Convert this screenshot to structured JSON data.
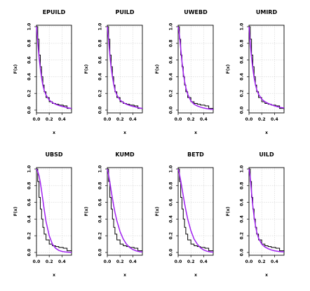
{
  "figure": {
    "panel_titles": [
      "EPUILD",
      "PUILD",
      "UWEBD",
      "UMIRD",
      "UBSD",
      "KUMD",
      "BETD",
      "UILD"
    ]
  },
  "colors": {
    "empirical": "#000000",
    "fitted": "#a020f0",
    "grid": "#d3d3d3",
    "frame": "#000000"
  },
  "chart_data": [
    {
      "type": "line",
      "title": "EPUILD",
      "xlabel": "x",
      "ylabel": "F(x)",
      "xlim": [
        0,
        0.55
      ],
      "ylim": [
        0,
        1
      ],
      "xticks": [
        "0.0",
        "0.2",
        "0.4"
      ],
      "yticks": [
        "0.0",
        "0.2",
        "0.4",
        "0.6",
        "0.8",
        "1.0"
      ],
      "grid": true,
      "legend": "none",
      "series": [
        {
          "role": "empirical",
          "style": "step",
          "x": [
            0,
            0.02,
            0.04,
            0.06,
            0.08,
            0.1,
            0.12,
            0.15,
            0.2,
            0.25,
            0.3,
            0.35,
            0.42,
            0.48,
            0.55
          ],
          "y": [
            1.0,
            0.85,
            0.66,
            0.52,
            0.4,
            0.3,
            0.22,
            0.15,
            0.1,
            0.08,
            0.07,
            0.06,
            0.05,
            0.02,
            0.0
          ]
        },
        {
          "role": "fitted",
          "style": "line",
          "x": [
            0,
            0.02,
            0.04,
            0.06,
            0.08,
            0.1,
            0.12,
            0.15,
            0.2,
            0.25,
            0.3,
            0.35,
            0.4,
            0.45,
            0.5,
            0.55
          ],
          "y": [
            1.0,
            0.82,
            0.64,
            0.5,
            0.39,
            0.3,
            0.24,
            0.18,
            0.12,
            0.09,
            0.07,
            0.055,
            0.045,
            0.035,
            0.025,
            0.02
          ]
        }
      ]
    },
    {
      "type": "line",
      "title": "PUILD",
      "xlabel": "x",
      "ylabel": "F(x)",
      "xlim": [
        0,
        0.55
      ],
      "ylim": [
        0,
        1
      ],
      "xticks": [
        "0.0",
        "0.2",
        "0.4"
      ],
      "yticks": [
        "0.0",
        "0.2",
        "0.4",
        "0.6",
        "0.8",
        "1.0"
      ],
      "grid": true,
      "legend": "none",
      "series": [
        {
          "role": "empirical",
          "style": "step",
          "x": [
            0,
            0.02,
            0.04,
            0.06,
            0.08,
            0.1,
            0.12,
            0.15,
            0.2,
            0.25,
            0.3,
            0.35,
            0.42,
            0.48,
            0.55
          ],
          "y": [
            1.0,
            0.85,
            0.66,
            0.52,
            0.4,
            0.3,
            0.22,
            0.15,
            0.1,
            0.08,
            0.07,
            0.06,
            0.05,
            0.02,
            0.0
          ]
        },
        {
          "role": "fitted",
          "style": "line",
          "x": [
            0,
            0.02,
            0.04,
            0.06,
            0.08,
            0.1,
            0.12,
            0.15,
            0.2,
            0.25,
            0.3,
            0.35,
            0.4,
            0.45,
            0.5,
            0.55
          ],
          "y": [
            1.0,
            0.84,
            0.66,
            0.51,
            0.4,
            0.31,
            0.24,
            0.18,
            0.12,
            0.09,
            0.07,
            0.055,
            0.045,
            0.035,
            0.025,
            0.02
          ]
        }
      ]
    },
    {
      "type": "line",
      "title": "UWEBD",
      "xlabel": "x",
      "ylabel": "F(x)",
      "xlim": [
        0,
        0.55
      ],
      "ylim": [
        0,
        1
      ],
      "xticks": [
        "0.0",
        "0.2",
        "0.4"
      ],
      "yticks": [
        "0.0",
        "0.2",
        "0.4",
        "0.6",
        "0.8",
        "1.0"
      ],
      "grid": true,
      "legend": "none",
      "series": [
        {
          "role": "empirical",
          "style": "step",
          "x": [
            0,
            0.02,
            0.04,
            0.06,
            0.08,
            0.1,
            0.12,
            0.15,
            0.2,
            0.25,
            0.3,
            0.35,
            0.42,
            0.48,
            0.55
          ],
          "y": [
            1.0,
            0.85,
            0.66,
            0.52,
            0.4,
            0.3,
            0.22,
            0.15,
            0.1,
            0.08,
            0.07,
            0.06,
            0.05,
            0.02,
            0.0
          ]
        },
        {
          "role": "fitted",
          "style": "line",
          "x": [
            0,
            0.02,
            0.04,
            0.06,
            0.08,
            0.1,
            0.12,
            0.15,
            0.2,
            0.25,
            0.3,
            0.35,
            0.4,
            0.45,
            0.5,
            0.55
          ],
          "y": [
            1.0,
            0.9,
            0.74,
            0.58,
            0.45,
            0.35,
            0.27,
            0.19,
            0.11,
            0.07,
            0.05,
            0.035,
            0.025,
            0.018,
            0.012,
            0.008
          ]
        }
      ]
    },
    {
      "type": "line",
      "title": "UMIRD",
      "xlabel": "x",
      "ylabel": "F(x)",
      "xlim": [
        0,
        0.55
      ],
      "ylim": [
        0,
        1
      ],
      "xticks": [
        "0.0",
        "0.2",
        "0.4"
      ],
      "yticks": [
        "0.0",
        "0.2",
        "0.4",
        "0.6",
        "0.8",
        "1.0"
      ],
      "grid": true,
      "legend": "none",
      "series": [
        {
          "role": "empirical",
          "style": "step",
          "x": [
            0,
            0.02,
            0.04,
            0.06,
            0.08,
            0.1,
            0.12,
            0.15,
            0.2,
            0.25,
            0.3,
            0.35,
            0.42,
            0.48,
            0.55
          ],
          "y": [
            1.0,
            0.85,
            0.66,
            0.52,
            0.4,
            0.3,
            0.22,
            0.15,
            0.1,
            0.08,
            0.07,
            0.06,
            0.05,
            0.02,
            0.0
          ]
        },
        {
          "role": "fitted",
          "style": "line",
          "x": [
            0,
            0.02,
            0.04,
            0.06,
            0.08,
            0.1,
            0.12,
            0.15,
            0.2,
            0.25,
            0.3,
            0.35,
            0.4,
            0.45,
            0.5,
            0.55
          ],
          "y": [
            1.0,
            0.8,
            0.63,
            0.5,
            0.39,
            0.31,
            0.25,
            0.19,
            0.13,
            0.1,
            0.08,
            0.065,
            0.05,
            0.04,
            0.03,
            0.025
          ]
        }
      ]
    },
    {
      "type": "line",
      "title": "UBSD",
      "xlabel": "x",
      "ylabel": "F(x)",
      "xlim": [
        0,
        0.55
      ],
      "ylim": [
        0,
        1
      ],
      "xticks": [
        "0.0",
        "0.2",
        "0.4"
      ],
      "yticks": [
        "0.0",
        "0.2",
        "0.4",
        "0.6",
        "0.8",
        "1.0"
      ],
      "grid": true,
      "legend": "none",
      "series": [
        {
          "role": "empirical",
          "style": "step",
          "x": [
            0,
            0.02,
            0.04,
            0.06,
            0.08,
            0.1,
            0.12,
            0.15,
            0.2,
            0.25,
            0.3,
            0.35,
            0.42,
            0.48,
            0.55
          ],
          "y": [
            1.0,
            0.85,
            0.66,
            0.52,
            0.4,
            0.3,
            0.22,
            0.15,
            0.1,
            0.08,
            0.07,
            0.06,
            0.05,
            0.02,
            0.0
          ]
        },
        {
          "role": "fitted",
          "style": "line",
          "x": [
            0,
            0.02,
            0.04,
            0.06,
            0.08,
            0.1,
            0.12,
            0.15,
            0.2,
            0.25,
            0.3,
            0.35,
            0.4,
            0.45,
            0.5,
            0.55
          ],
          "y": [
            1.0,
            0.97,
            0.92,
            0.84,
            0.74,
            0.63,
            0.52,
            0.37,
            0.2,
            0.1,
            0.05,
            0.025,
            0.012,
            0.006,
            0.003,
            0.001
          ]
        }
      ]
    },
    {
      "type": "line",
      "title": "KUMD",
      "xlabel": "x",
      "ylabel": "F(x)",
      "xlim": [
        0,
        0.55
      ],
      "ylim": [
        0,
        1
      ],
      "xticks": [
        "0.0",
        "0.2",
        "0.4"
      ],
      "yticks": [
        "0.0",
        "0.2",
        "0.4",
        "0.6",
        "0.8",
        "1.0"
      ],
      "grid": true,
      "legend": "none",
      "series": [
        {
          "role": "empirical",
          "style": "step",
          "x": [
            0,
            0.02,
            0.04,
            0.06,
            0.08,
            0.1,
            0.12,
            0.15,
            0.2,
            0.25,
            0.3,
            0.35,
            0.42,
            0.48,
            0.55
          ],
          "y": [
            1.0,
            0.85,
            0.66,
            0.52,
            0.4,
            0.3,
            0.22,
            0.15,
            0.1,
            0.08,
            0.07,
            0.06,
            0.05,
            0.02,
            0.0
          ]
        },
        {
          "role": "fitted",
          "style": "line",
          "x": [
            0,
            0.02,
            0.04,
            0.06,
            0.08,
            0.1,
            0.12,
            0.15,
            0.2,
            0.25,
            0.3,
            0.35,
            0.4,
            0.45,
            0.5,
            0.55
          ],
          "y": [
            1.0,
            0.93,
            0.84,
            0.74,
            0.65,
            0.56,
            0.48,
            0.38,
            0.25,
            0.16,
            0.1,
            0.06,
            0.035,
            0.02,
            0.01,
            0.005
          ]
        }
      ]
    },
    {
      "type": "line",
      "title": "BETD",
      "xlabel": "x",
      "ylabel": "F(x)",
      "xlim": [
        0,
        0.55
      ],
      "ylim": [
        0,
        1
      ],
      "xticks": [
        "0.0",
        "0.2",
        "0.4"
      ],
      "yticks": [
        "0.0",
        "0.2",
        "0.4",
        "0.6",
        "0.8",
        "1.0"
      ],
      "grid": true,
      "legend": "none",
      "series": [
        {
          "role": "empirical",
          "style": "step",
          "x": [
            0,
            0.02,
            0.04,
            0.06,
            0.08,
            0.1,
            0.12,
            0.15,
            0.2,
            0.25,
            0.3,
            0.35,
            0.42,
            0.48,
            0.55
          ],
          "y": [
            1.0,
            0.85,
            0.66,
            0.52,
            0.4,
            0.3,
            0.22,
            0.15,
            0.1,
            0.08,
            0.07,
            0.06,
            0.05,
            0.02,
            0.0
          ]
        },
        {
          "role": "fitted",
          "style": "line",
          "x": [
            0,
            0.02,
            0.04,
            0.06,
            0.08,
            0.1,
            0.12,
            0.15,
            0.2,
            0.25,
            0.3,
            0.35,
            0.4,
            0.45,
            0.5,
            0.55
          ],
          "y": [
            1.0,
            0.94,
            0.86,
            0.77,
            0.68,
            0.59,
            0.51,
            0.4,
            0.26,
            0.16,
            0.1,
            0.055,
            0.03,
            0.015,
            0.007,
            0.003
          ]
        }
      ]
    },
    {
      "type": "line",
      "title": "UILD",
      "xlabel": "x",
      "ylabel": "F(x)",
      "xlim": [
        0,
        0.55
      ],
      "ylim": [
        0,
        1
      ],
      "xticks": [
        "0.0",
        "0.2",
        "0.4"
      ],
      "yticks": [
        "0.0",
        "0.2",
        "0.4",
        "0.6",
        "0.8",
        "1.0"
      ],
      "grid": true,
      "legend": "none",
      "series": [
        {
          "role": "empirical",
          "style": "step",
          "x": [
            0,
            0.02,
            0.04,
            0.06,
            0.08,
            0.1,
            0.12,
            0.15,
            0.2,
            0.25,
            0.3,
            0.35,
            0.42,
            0.48,
            0.55
          ],
          "y": [
            1.0,
            0.85,
            0.66,
            0.52,
            0.4,
            0.3,
            0.22,
            0.15,
            0.1,
            0.08,
            0.07,
            0.06,
            0.05,
            0.02,
            0.0
          ]
        },
        {
          "role": "fitted",
          "style": "line",
          "x": [
            0,
            0.02,
            0.04,
            0.06,
            0.08,
            0.1,
            0.12,
            0.15,
            0.2,
            0.25,
            0.3,
            0.35,
            0.4,
            0.45,
            0.5,
            0.55
          ],
          "y": [
            1.0,
            0.9,
            0.72,
            0.56,
            0.43,
            0.33,
            0.25,
            0.17,
            0.1,
            0.065,
            0.045,
            0.03,
            0.02,
            0.014,
            0.009,
            0.006
          ]
        }
      ]
    }
  ]
}
